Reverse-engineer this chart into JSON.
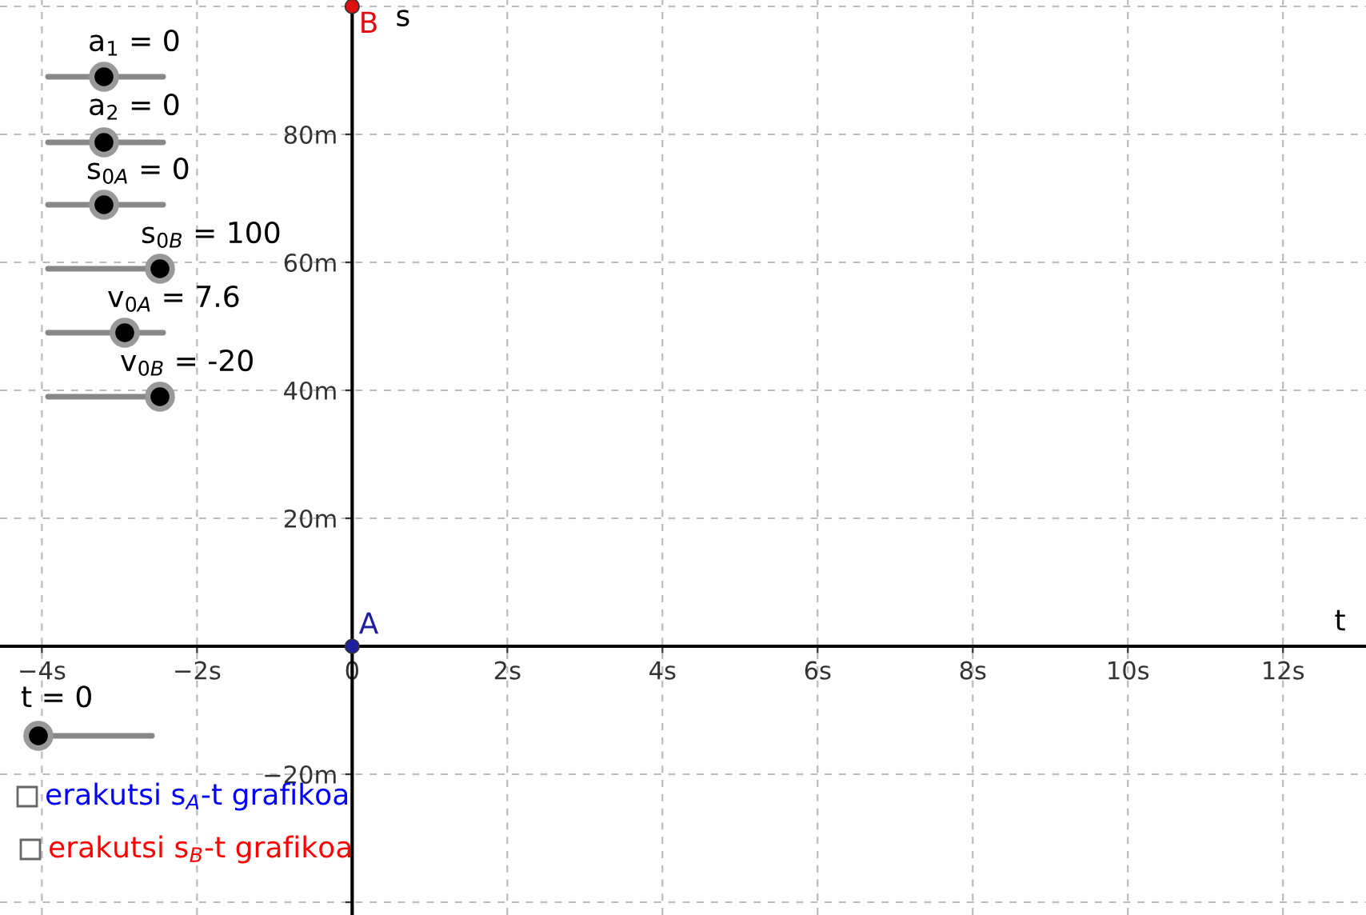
{
  "chart_data": {
    "type": "scatter",
    "xlabel": "t",
    "ylabel": "s",
    "xlim": [
      -4.54,
      13.07
    ],
    "ylim": [
      -42,
      101
    ],
    "xticks": [
      {
        "value": -4,
        "label": "−4s"
      },
      {
        "value": -2,
        "label": "−2s"
      },
      {
        "value": 0,
        "label": "0"
      },
      {
        "value": 2,
        "label": "2s"
      },
      {
        "value": 4,
        "label": "4s"
      },
      {
        "value": 6,
        "label": "6s"
      },
      {
        "value": 8,
        "label": "8s"
      },
      {
        "value": 10,
        "label": "10s"
      },
      {
        "value": 12,
        "label": "12s"
      }
    ],
    "yticks": [
      {
        "value": -40,
        "label": null
      },
      {
        "value": -20,
        "label": "−20m"
      },
      {
        "value": 20,
        "label": "20m"
      },
      {
        "value": 40,
        "label": "40m"
      },
      {
        "value": 60,
        "label": "60m"
      },
      {
        "value": 80,
        "label": "80m"
      },
      {
        "value": 100,
        "label": null
      }
    ],
    "grid": true,
    "legend": false,
    "marker": "circle",
    "series": [
      {
        "name": "A",
        "color": "#1f1fa0",
        "x": [
          0
        ],
        "values": [
          0
        ]
      },
      {
        "name": "B",
        "color": "#e01010",
        "x": [
          0
        ],
        "values": [
          100
        ]
      }
    ],
    "annotations": [
      "a$_{1}$ = 0",
      "a$_{2}$ = 0",
      "s$_{0A}$ = 0",
      "s$_{0B}$ = 100",
      "v$_{0A}$ = 7.6",
      "v$_{0B}$ = -20",
      "t = 0",
      "erakutsi s$_{A}$-t grafikoa",
      "erakutsi s$_{B}$-t grafikoa"
    ]
  }
}
